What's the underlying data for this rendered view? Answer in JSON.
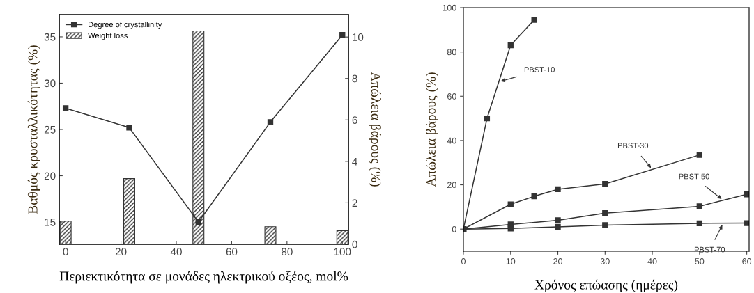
{
  "chart_data": [
    {
      "type": "line",
      "xlabel": "Περιεκτικότητα σε μονάδες ηλεκτρικού οξέος, mol%",
      "ylabel": "Βαθμός κρυσταλλικότητας (%)",
      "y2label": "Απώλεια βάρους (%)",
      "xlim": [
        -2.3,
        102.2
      ],
      "xticks": [
        0,
        20,
        40,
        60,
        80,
        100
      ],
      "ylim": [
        12.6,
        37.4
      ],
      "yticks": [
        15,
        20,
        25,
        30,
        35
      ],
      "y2lim": [
        0,
        11.08
      ],
      "y2ticks": [
        0,
        2,
        4,
        6,
        8,
        10
      ],
      "legend": "top left",
      "grid": false,
      "series": [
        {
          "name": "Degree of crystallinity",
          "type": "line",
          "axis": "y",
          "color": "#333333",
          "marker": "square",
          "x": [
            0,
            23,
            48,
            74,
            100
          ],
          "values": [
            27.3,
            25.2,
            15.0,
            25.8,
            35.2
          ]
        },
        {
          "name": "Weight loss",
          "type": "bar",
          "axis": "y2",
          "color": "#333333",
          "x": [
            0,
            23,
            48,
            74,
            100
          ],
          "values": [
            1.12,
            3.17,
            10.29,
            0.85,
            0.66
          ]
        }
      ]
    },
    {
      "type": "line",
      "xlabel": "Χρόνος επώασης (ημέρες)",
      "ylabel": "Απώλεια βάρους (%)",
      "xlim": [
        0,
        60.5
      ],
      "xticks": [
        0,
        10,
        20,
        30,
        40,
        50,
        60
      ],
      "ylim": [
        -10,
        100
      ],
      "yticks": [
        0,
        20,
        40,
        60,
        80,
        100
      ],
      "grid": false,
      "marker": "square",
      "series": [
        {
          "name": "PBST-10",
          "color": "#333333",
          "x": [
            0,
            5,
            10,
            15
          ],
          "values": [
            0,
            50,
            83,
            94.5
          ]
        },
        {
          "name": "PBST-30",
          "color": "#333333",
          "x": [
            0,
            10,
            15,
            20,
            30,
            50
          ],
          "values": [
            0,
            11.2,
            14.8,
            18,
            20.4,
            33.5
          ]
        },
        {
          "name": "PBST-50",
          "color": "#333333",
          "x": [
            0,
            10,
            20,
            30,
            50,
            60
          ],
          "values": [
            0,
            2.1,
            4,
            7.2,
            10.3,
            15.7
          ]
        },
        {
          "name": "PBST-70",
          "color": "#333333",
          "x": [
            0,
            10,
            20,
            30,
            50,
            60
          ],
          "values": [
            0,
            0.3,
            1,
            1.8,
            2.6,
            2.7
          ]
        }
      ]
    }
  ]
}
